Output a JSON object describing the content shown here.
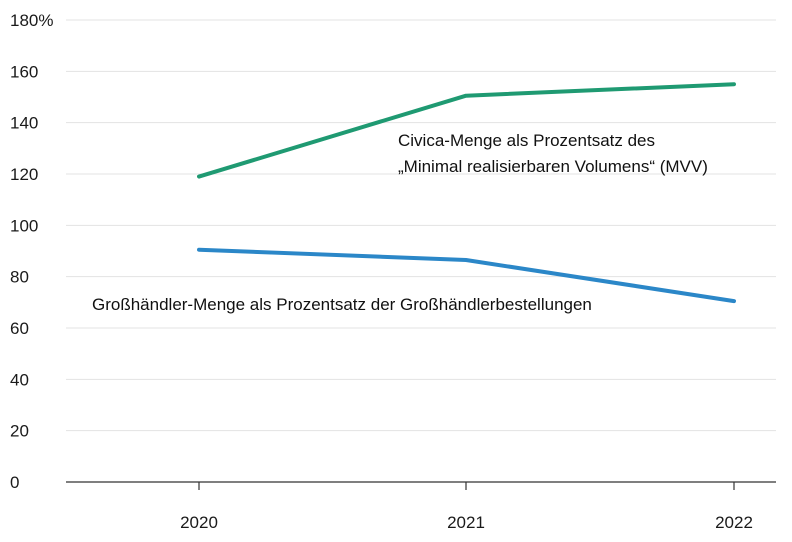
{
  "chart_data": {
    "type": "line",
    "x": [
      "2020",
      "2021",
      "2022"
    ],
    "y_ticks": [
      "0",
      "20",
      "40",
      "60",
      "80",
      "100",
      "120",
      "140",
      "160",
      "180%"
    ],
    "ylim": [
      0,
      180
    ],
    "grid": true,
    "series": [
      {
        "name": "Civica",
        "values": [
          119,
          150.5,
          155
        ],
        "color": "#1f9a72"
      },
      {
        "name": "Großhändler",
        "values": [
          90.5,
          86.5,
          70.5
        ],
        "color": "#2b87c8"
      }
    ],
    "annotations": [
      {
        "series": "Civica",
        "lines": [
          "Civica-Menge als Prozentsatz des",
          "„Minimal realisierbaren Volumens“ (MVV)"
        ]
      },
      {
        "series": "Großhändler",
        "lines": [
          "Großhändler-Menge als Prozentsatz der Großhändlerbestellungen"
        ]
      }
    ]
  }
}
